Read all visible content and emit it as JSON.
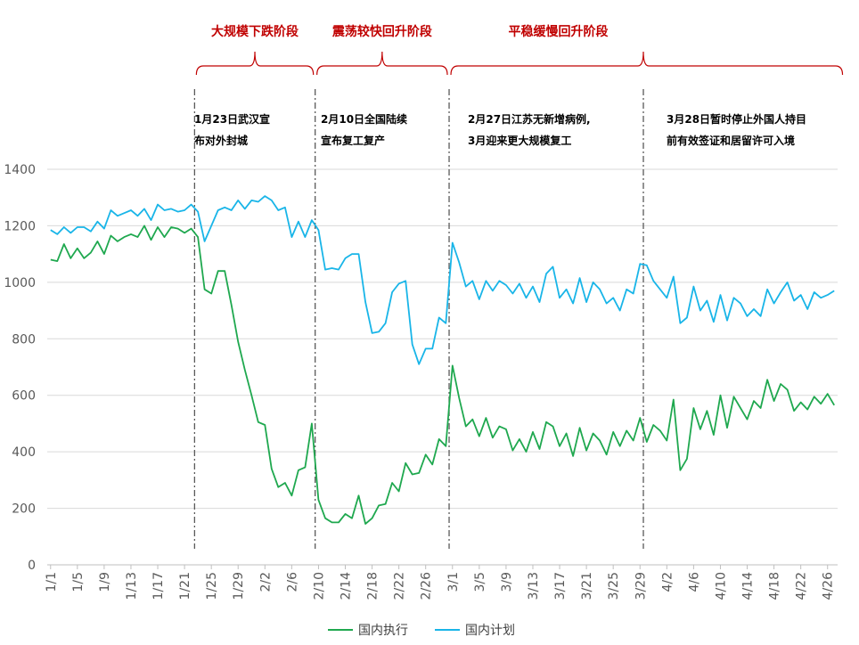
{
  "chart_data": {
    "type": "line",
    "title": "",
    "xlabel": "",
    "ylabel": "",
    "ylim": [
      0,
      1400
    ],
    "yticks": [
      0,
      200,
      400,
      600,
      800,
      1000,
      1200,
      1400
    ],
    "grid": "horizontal",
    "legend_position": "bottom",
    "x_tick_labels": [
      "1/1",
      "1/5",
      "1/9",
      "1/13",
      "1/17",
      "1/21",
      "1/25",
      "1/29",
      "2/2",
      "2/6",
      "2/10",
      "2/14",
      "2/18",
      "2/22",
      "2/26",
      "3/1",
      "3/5",
      "3/9",
      "3/13",
      "3/17",
      "3/21",
      "3/25",
      "3/29",
      "4/2",
      "4/6",
      "4/10",
      "4/14",
      "4/18",
      "4/22",
      "4/26"
    ],
    "series": [
      {
        "name": "国内执行",
        "color": "#1fa84f",
        "values": [
          1080,
          1075,
          1135,
          1085,
          1120,
          1085,
          1105,
          1145,
          1100,
          1165,
          1145,
          1160,
          1170,
          1160,
          1200,
          1150,
          1195,
          1160,
          1195,
          1190,
          1175,
          1190,
          1160,
          975,
          960,
          1040,
          1040,
          920,
          790,
          690,
          600,
          505,
          495,
          340,
          275,
          290,
          245,
          335,
          345,
          500,
          230,
          165,
          150,
          150,
          180,
          165,
          245,
          145,
          165,
          210,
          215,
          290,
          260,
          360,
          320,
          325,
          390,
          355,
          445,
          420,
          705,
          590,
          490,
          515,
          455,
          520,
          450,
          490,
          480,
          405,
          445,
          400,
          470,
          410,
          505,
          490,
          420,
          465,
          385,
          485,
          405,
          465,
          440,
          390,
          470,
          420,
          475,
          440,
          520,
          435,
          495,
          475,
          440,
          585,
          335,
          375,
          555,
          480,
          545,
          460,
          600,
          485,
          595,
          555,
          515,
          580,
          555,
          655,
          580,
          640,
          620,
          545,
          575,
          550,
          595,
          570,
          605,
          565
        ]
      },
      {
        "name": "国内计划",
        "color": "#19b5e8",
        "values": [
          1185,
          1170,
          1195,
          1175,
          1195,
          1195,
          1180,
          1215,
          1190,
          1255,
          1235,
          1245,
          1255,
          1235,
          1260,
          1220,
          1275,
          1255,
          1260,
          1250,
          1255,
          1275,
          1250,
          1145,
          1200,
          1255,
          1265,
          1255,
          1290,
          1260,
          1290,
          1285,
          1305,
          1290,
          1255,
          1265,
          1160,
          1215,
          1160,
          1220,
          1185,
          1045,
          1050,
          1045,
          1085,
          1100,
          1100,
          930,
          820,
          825,
          855,
          965,
          995,
          1005,
          780,
          710,
          765,
          765,
          875,
          855,
          1140,
          1070,
          985,
          1005,
          940,
          1005,
          970,
          1005,
          990,
          960,
          995,
          945,
          985,
          930,
          1030,
          1055,
          945,
          975,
          925,
          1015,
          930,
          1000,
          975,
          925,
          945,
          900,
          975,
          960,
          1065,
          1060,
          1005,
          975,
          945,
          1020,
          855,
          875,
          985,
          900,
          935,
          860,
          955,
          865,
          945,
          925,
          880,
          905,
          880,
          975,
          925,
          965,
          1000,
          935,
          955,
          905,
          965,
          945,
          955,
          970
        ]
      }
    ],
    "phases": [
      {
        "label": "大规模下跌阶段"
      },
      {
        "label": "震荡较快回升阶段"
      },
      {
        "label": "平稳缓慢回升阶段"
      }
    ],
    "annotations": [
      {
        "lines": [
          "1月23日武汉宣",
          "布对外封城"
        ]
      },
      {
        "lines": [
          "2月10日全国陆续",
          "宣布复工复产"
        ]
      },
      {
        "lines": [
          "2月27日江苏无新增病例,",
          "3月迎来更大规模复工"
        ]
      },
      {
        "lines": [
          "3月28日暂时停止外国人持目",
          "前有效签证和居留许可入境"
        ]
      }
    ]
  }
}
